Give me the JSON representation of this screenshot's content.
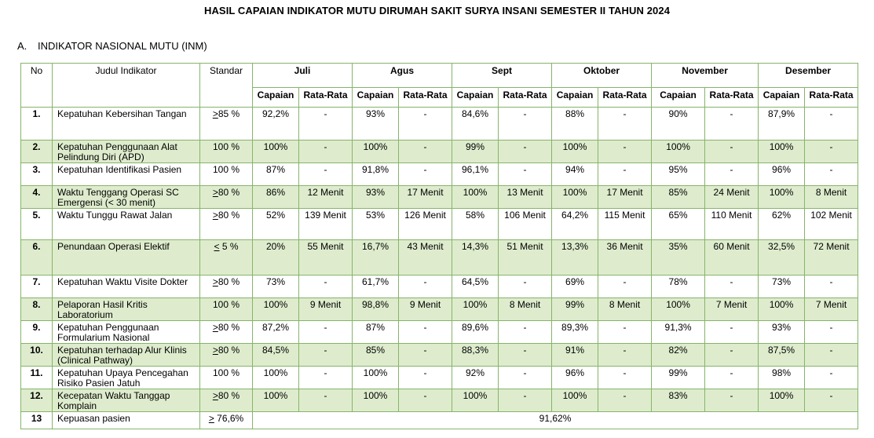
{
  "title": "HASIL CAPAIAN INDIKATOR MUTU DIRUMAH SAKIT SURYA INSANI SEMESTER II TAHUN 2024",
  "section": {
    "letter": "A.",
    "label": "INDIKATOR NASIONAL MUTU (INM)"
  },
  "headers": {
    "no": "No",
    "judul": "Judul Indikator",
    "standar": "Standar",
    "months": [
      "Juli",
      "Agus",
      "Sept",
      "Oktober",
      "November",
      "Desember"
    ],
    "capaian": "Capaian",
    "rata": "Rata-Rata"
  },
  "rows": [
    {
      "no": "1.",
      "title": "Kepatuhan Kebersihan Tangan",
      "std_sym": ">",
      "std_rest": "85 %",
      "values": [
        "92,2%",
        "-",
        "93%",
        "-",
        "84,6%",
        "-",
        "88%",
        "-",
        "90%",
        "-",
        "87,9%",
        "-"
      ]
    },
    {
      "no": "2.",
      "title": "Kepatuhan Penggunaan Alat Pelindung Diri (APD)",
      "std_sym": "",
      "std_rest": "100 %",
      "values": [
        "100%",
        "-",
        "100%",
        "-",
        "99%",
        "-",
        "100%",
        "-",
        "100%",
        "-",
        "100%",
        "-"
      ]
    },
    {
      "no": "3.",
      "title": "Kepatuhan Identifikasi Pasien",
      "std_sym": "",
      "std_rest": "100 %",
      "values": [
        "87%",
        "-",
        "91,8%",
        "-",
        "96,1%",
        "-",
        "94%",
        "-",
        "95%",
        "-",
        "96%",
        "-"
      ]
    },
    {
      "no": "4.",
      "title": "Waktu Tenggang Operasi SC Emergensi (< 30 menit)",
      "std_sym": ">",
      "std_rest": "80 %",
      "values": [
        "86%",
        "12 Menit",
        "93%",
        "17 Menit",
        "100%",
        "13 Menit",
        "100%",
        "17 Menit",
        "85%",
        "24 Menit",
        "100%",
        "8 Menit"
      ]
    },
    {
      "no": "5.",
      "title": "Waktu Tunggu Rawat Jalan",
      "std_sym": ">",
      "std_rest": "80 %",
      "values": [
        "52%",
        "139 Menit",
        "53%",
        "126 Menit",
        "58%",
        "106 Menit",
        "64,2%",
        "115 Menit",
        "65%",
        "110 Menit",
        "62%",
        "102 Menit"
      ]
    },
    {
      "no": "6.",
      "title": "Penundaan Operasi Elektif",
      "std_sym": "<",
      "std_rest": " 5 %",
      "values": [
        "20%",
        "55 Menit",
        "16,7%",
        "43 Menit",
        "14,3%",
        "51 Menit",
        "13,3%",
        "36 Menit",
        "35%",
        "60 Menit",
        "32,5%",
        "72 Menit"
      ]
    },
    {
      "no": "7.",
      "title": "Kepatuhan Waktu Visite Dokter",
      "std_sym": ">",
      "std_rest": "80 %",
      "values": [
        "73%",
        "-",
        "61,7%",
        "-",
        "64,5%",
        "-",
        "69%",
        "-",
        "78%",
        "-",
        "73%",
        "-"
      ]
    },
    {
      "no": "8.",
      "title": "Pelaporan Hasil Kritis Laboratorium",
      "std_sym": "",
      "std_rest": "100 %",
      "values": [
        "100%",
        "9 Menit",
        "98,8%",
        "9 Menit",
        "100%",
        "8 Menit",
        "99%",
        "8 Menit",
        "100%",
        "7 Menit",
        "100%",
        "7 Menit"
      ]
    },
    {
      "no": "9.",
      "title": "Kepatuhan Penggunaan Formularium Nasional",
      "std_sym": ">",
      "std_rest": "80 %",
      "values": [
        "87,2%",
        "-",
        "87%",
        "-",
        "89,6%",
        "-",
        "89,3%",
        "-",
        "91,3%",
        "-",
        "93%",
        "-"
      ]
    },
    {
      "no": "10.",
      "title": "Kepatuhan terhadap Alur Klinis (Clinical Pathway)",
      "std_sym": ">",
      "std_rest": "80 %",
      "values": [
        "84,5%",
        "-",
        "85%",
        "-",
        "88,3%",
        "-",
        "91%",
        "-",
        "82%",
        "-",
        "87,5%",
        "-"
      ]
    },
    {
      "no": "11.",
      "title": "Kepatuhan Upaya Pencegahan Risiko Pasien Jatuh",
      "std_sym": "",
      "std_rest": "100 %",
      "values": [
        "100%",
        "-",
        "100%",
        "-",
        "92%",
        "-",
        "96%",
        "-",
        "99%",
        "-",
        "98%",
        "-"
      ]
    },
    {
      "no": "12.",
      "title": "Kecepatan Waktu Tanggap Komplain",
      "std_sym": ">",
      "std_rest": "80 %",
      "values": [
        "100%",
        "-",
        "100%",
        "-",
        "100%",
        "-",
        "100%",
        "-",
        "83%",
        "-",
        "100%",
        "-"
      ]
    }
  ],
  "last_row": {
    "no": "13",
    "title": "Kepuasan pasien",
    "std_sym": ">",
    "std_rest": " 76,6%",
    "value": "91,62%"
  }
}
